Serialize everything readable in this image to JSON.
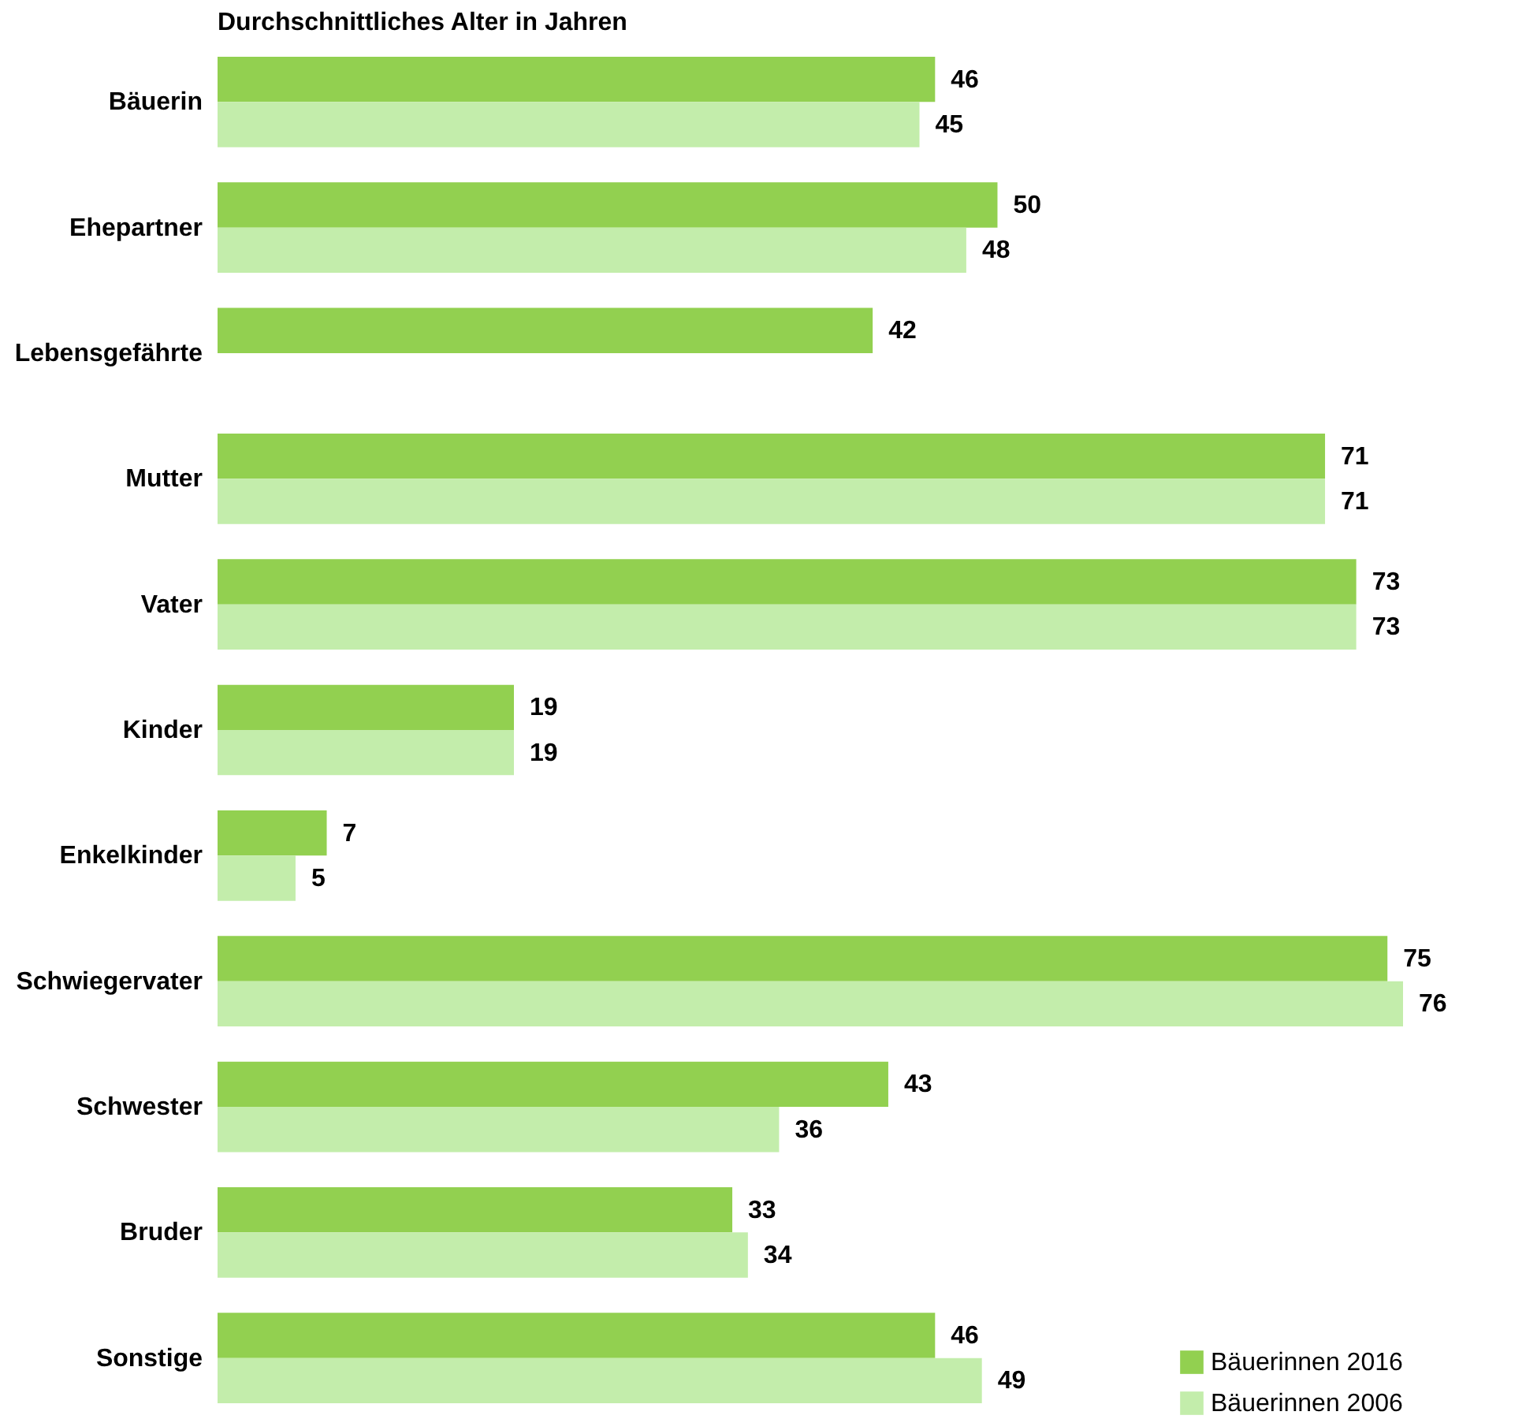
{
  "chart_data": {
    "type": "bar",
    "orientation": "horizontal",
    "title": "Durchschnittliches Alter in Jahren",
    "categories": [
      "Bäuerin",
      "Ehepartner",
      "Lebensgefährte",
      "Mutter",
      "Vater",
      "Kinder",
      "Enkelkinder",
      "Schwiegervater",
      "Schwester",
      "Bruder",
      "Sonstige"
    ],
    "series": [
      {
        "name": "Bäuerinnen 2016",
        "color": "#92d050",
        "values": [
          46,
          50,
          42,
          71,
          73,
          19,
          7,
          75,
          43,
          33,
          46
        ]
      },
      {
        "name": "Bäuerinnen 2006",
        "color": "#c3edab",
        "values": [
          45,
          48,
          null,
          71,
          73,
          19,
          5,
          76,
          36,
          34,
          49
        ]
      }
    ],
    "data_labels": true,
    "legend": "bottom right",
    "grid": false
  }
}
